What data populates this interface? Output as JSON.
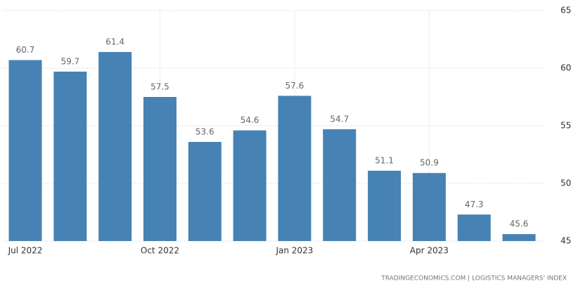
{
  "chart_data": {
    "type": "bar",
    "categories": [
      "Jul 2022",
      null,
      null,
      "Oct 2022",
      null,
      null,
      "Jan 2023",
      null,
      null,
      "Apr 2023",
      null,
      null
    ],
    "values": [
      60.7,
      59.7,
      61.4,
      57.5,
      53.6,
      54.6,
      57.6,
      54.7,
      51.1,
      50.9,
      47.3,
      45.6
    ],
    "color": "#4682b4",
    "ylim": [
      45,
      65
    ],
    "yticks": [
      45,
      50,
      55,
      60,
      65
    ],
    "grid": true,
    "source": "TRADINGECONOMICS.COM | LOGISTICS MANAGERS' INDEX"
  }
}
